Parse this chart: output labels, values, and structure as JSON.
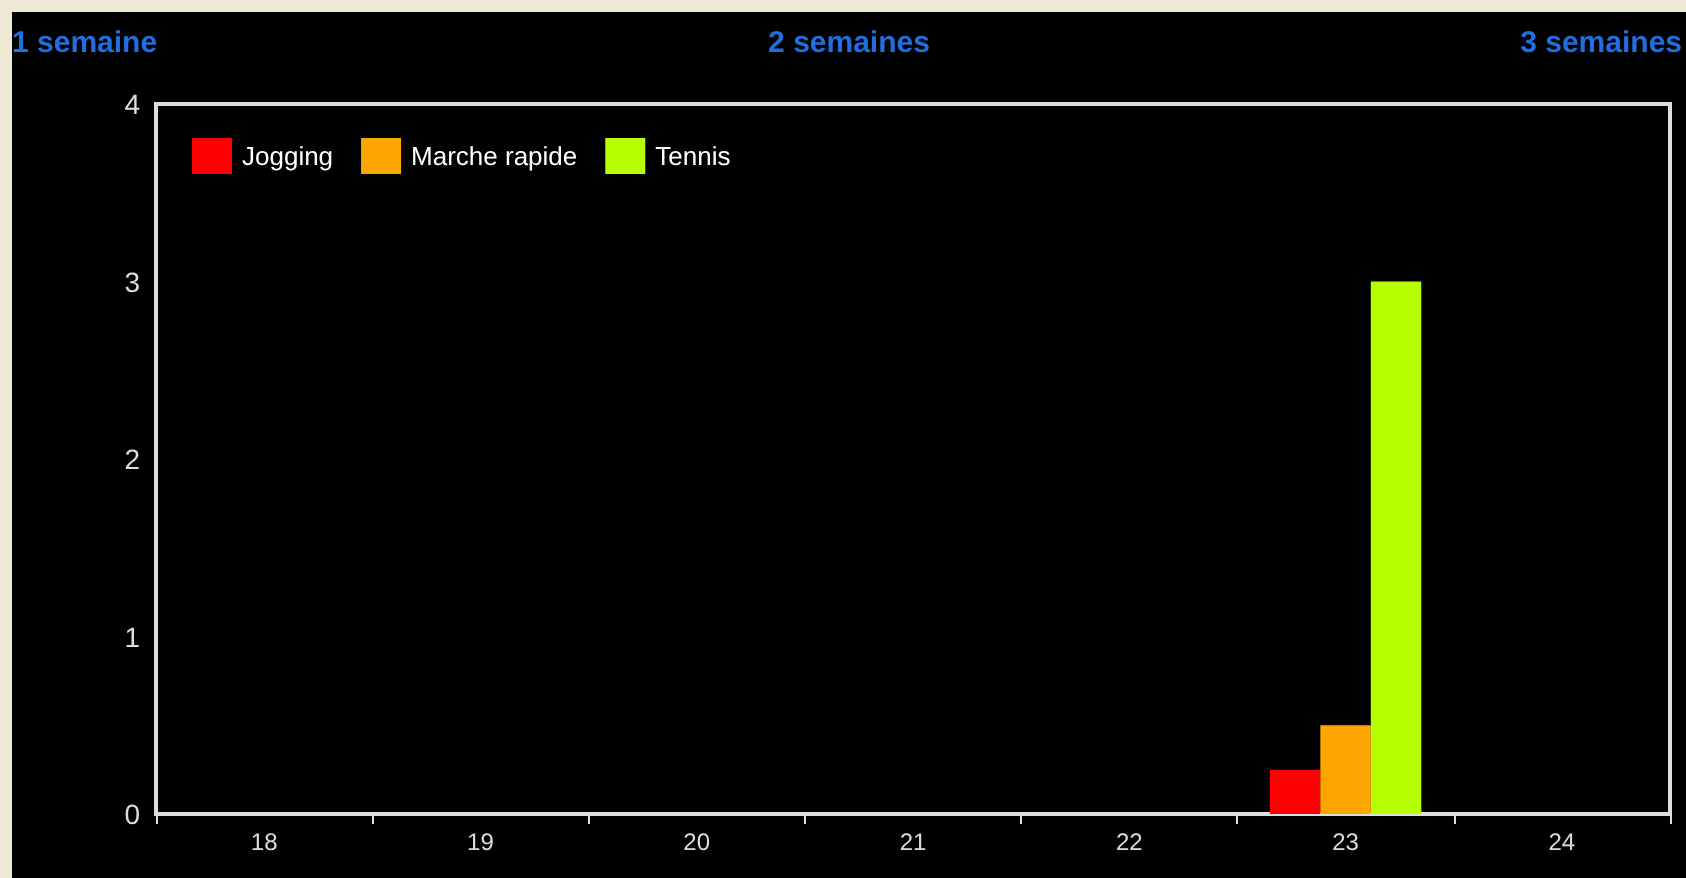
{
  "chart_data": {
    "type": "bar",
    "categories": [
      "18",
      "19",
      "20",
      "21",
      "22",
      "23",
      "24"
    ],
    "series": [
      {
        "name": "Jogging",
        "color": "#ff0000",
        "values": [
          0,
          0,
          0,
          0,
          0,
          0.25,
          0
        ]
      },
      {
        "name": "Marche rapide",
        "color": "#ffa500",
        "values": [
          0,
          0,
          0,
          0,
          0,
          0.5,
          0
        ]
      },
      {
        "name": "Tennis",
        "color": "#b5ff00",
        "values": [
          0,
          0,
          0,
          0,
          0,
          3,
          0
        ]
      }
    ],
    "ylim": [
      0,
      4
    ],
    "yticks": [
      0,
      1,
      2,
      3,
      4
    ],
    "grid": false,
    "legend": "top left",
    "annotations": [
      "1 semaine",
      "2 semaines",
      "3 semaines"
    ]
  }
}
